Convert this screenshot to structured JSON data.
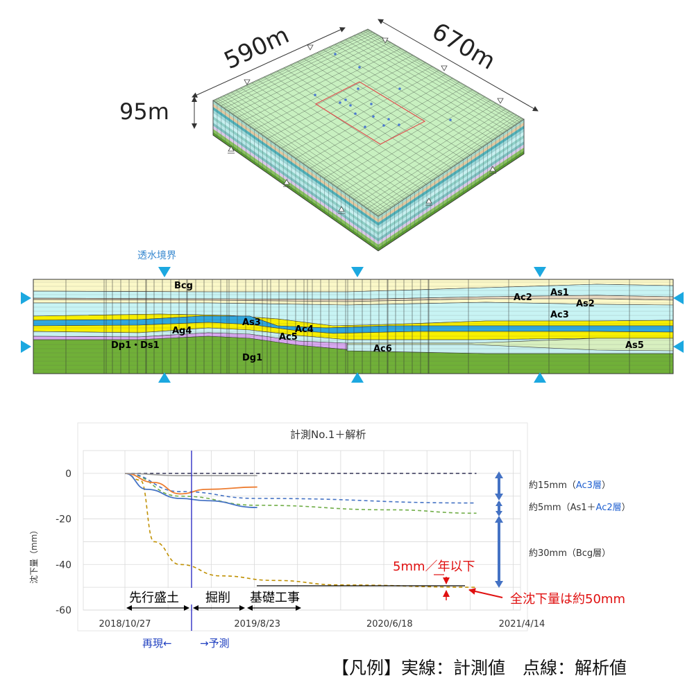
{
  "model3d": {
    "dim_width": "590m",
    "dim_depth": "670m",
    "dim_height": "95m"
  },
  "section": {
    "boundary_label": "透水境界",
    "layers": {
      "bcg": "Bcg",
      "ag4": "Ag4",
      "as3": "As3",
      "ac4": "Ac4",
      "ac5": "Ac5",
      "dp1ds1": "Dp1・Ds1",
      "dg1": "Dg1",
      "ac6": "Ac6",
      "ac2": "Ac2",
      "as1": "As1",
      "as2": "As2",
      "ac3": "Ac3",
      "as5": "As5"
    }
  },
  "colors": {
    "surface": "#c8f0c0",
    "bcg": "#fbf8c8",
    "water": "#c8f4f4",
    "sand": "#f8f000",
    "clay": "#30a8e0",
    "gravel": "#70b038",
    "lilac": "#d8a8f0",
    "marker": "#1ca8e0",
    "measured_blue": "#4472c4",
    "measured_orange": "#ed7d31",
    "measured_gray": "#a0a0a0",
    "analysis_green": "#70ad47",
    "analysis_brown": "#bf8f00",
    "annotation_red": "#e01010"
  },
  "chart_data": {
    "type": "line",
    "title": "計測No.1＋解析",
    "ylabel": "沈下量（mm）",
    "ylim": [
      -60,
      10
    ],
    "yticks": [
      0,
      -20,
      -40,
      -60
    ],
    "xticks": [
      "2018/10/27",
      "2019/8/23",
      "2020/6/18",
      "2021/4/14"
    ],
    "series": [
      {
        "style": "dashed",
        "color": "#bf8f00",
        "x": [
          "2018/10/27",
          "2018/12/01",
          "2019/01/01",
          "2019/03/01",
          "2019/06/01",
          "2019/10/01",
          "2020/03/01",
          "2021/01/01"
        ],
        "y": [
          0,
          -3,
          -30,
          -40,
          -45,
          -47,
          -49,
          -50
        ]
      },
      {
        "style": "dashed",
        "color": "#70ad47",
        "x": [
          "2018/10/27",
          "2019/03/01",
          "2019/08/23",
          "2020/06/18",
          "2021/01/01"
        ],
        "y": [
          0,
          -10,
          -14,
          -16,
          -17.5
        ]
      },
      {
        "style": "dashed",
        "color": "#4472c4",
        "x": [
          "2018/10/27",
          "2019/03/01",
          "2019/08/23",
          "2021/01/01"
        ],
        "y": [
          0,
          -8,
          -11,
          -13
        ]
      },
      {
        "style": "dashed",
        "color": "#404060",
        "x": [
          "2018/10/27",
          "2021/01/01"
        ],
        "y": [
          0,
          0
        ]
      },
      {
        "style": "solid",
        "color": "#4472c4",
        "x": [
          "2018/10/27",
          "2018/12/15",
          "2019/03/01",
          "2019/05/01",
          "2019/08/23"
        ],
        "y": [
          0,
          -7,
          -11,
          -12,
          -15
        ]
      },
      {
        "style": "solid",
        "color": "#ed7d31",
        "x": [
          "2018/10/27",
          "2019/01/01",
          "2019/03/01",
          "2019/05/01",
          "2019/08/23"
        ],
        "y": [
          0,
          -4,
          -9,
          -7,
          -6
        ]
      },
      {
        "style": "solid",
        "color": "#a0a0a0",
        "x": [
          "2018/10/27",
          "2019/03/01",
          "2019/08/23"
        ],
        "y": [
          0,
          -1,
          -1
        ]
      }
    ],
    "brackets": {
      "b1": "約15mm（",
      "b1_hl": "Ac3層",
      "b1_end": "）",
      "b2": "約5mm（As1＋",
      "b2_hl": "Ac2層",
      "b2_end": "）",
      "b3": "約30mm（Bcg層）"
    },
    "rate_label": "5mm／年以下",
    "total_label": "全沈下量は約50mm",
    "phases": {
      "p1": "先行盛土",
      "p2": "掘削",
      "p3": "基礎工事"
    },
    "reproduce_label": "再現←",
    "predict_label": "→予測"
  },
  "legend": "【凡例】実線：計測値　点線：解析値"
}
